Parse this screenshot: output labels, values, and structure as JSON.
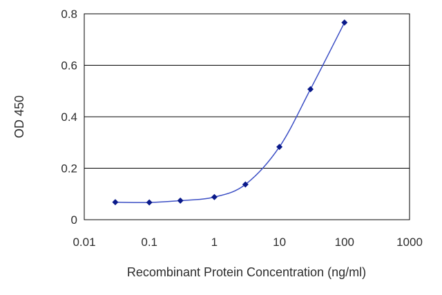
{
  "chart_data": {
    "type": "line",
    "title": "",
    "xlabel": "Recombinant Protein Concentration (ng/ml)",
    "ylabel": "OD 450",
    "xscale": "log",
    "xlim": [
      0.01,
      1000
    ],
    "ylim": [
      0,
      0.8
    ],
    "xticks": [
      0.01,
      0.1,
      1,
      10,
      100,
      1000
    ],
    "xtick_labels": [
      "0.01",
      "0.1",
      "1",
      "10",
      "100",
      "1000"
    ],
    "yticks": [
      0,
      0.2,
      0.4,
      0.6,
      0.8
    ],
    "ytick_labels": [
      "0",
      "0.2",
      "0.4",
      "0.6",
      "0.8"
    ],
    "grid": "horizontal",
    "legend": "none",
    "line_color": "#3a4dc4",
    "marker_color": "#0a1a8a",
    "series": [
      {
        "x": [
          0.03,
          0.1,
          0.3,
          1,
          3,
          10,
          30,
          100
        ],
        "y": [
          0.068,
          0.067,
          0.074,
          0.088,
          0.137,
          0.283,
          0.507,
          0.766
        ]
      }
    ]
  }
}
